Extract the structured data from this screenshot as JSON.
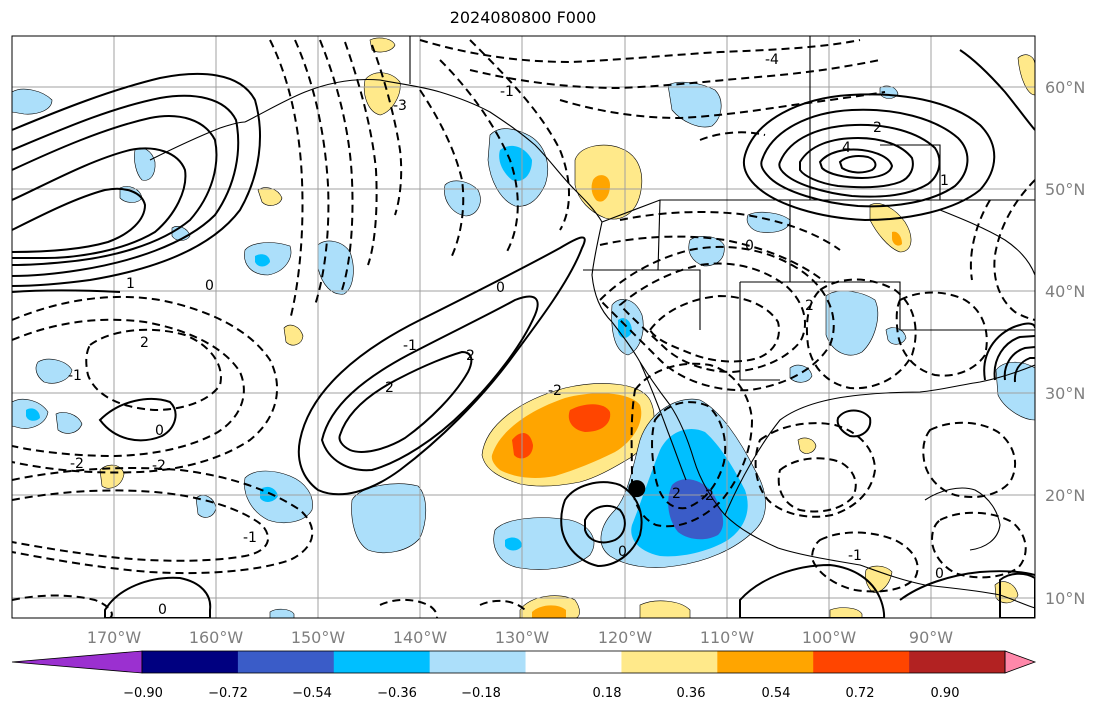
{
  "title": "2024080800 F000",
  "map": {
    "lat_labels": [
      "60°N",
      "50°N",
      "40°N",
      "30°N",
      "20°N",
      "10°N"
    ],
    "lon_labels": [
      "170°W",
      "160°W",
      "150°W",
      "140°W",
      "130°W",
      "120°W",
      "110°W",
      "100°W",
      "90°W"
    ],
    "grid_color": "#a0a0a0",
    "marker": {
      "lon": -118.8,
      "lat": 20.7
    }
  },
  "colorbar": {
    "tick_labels": [
      "−0.90",
      "−0.72",
      "−0.54",
      "−0.36",
      "−0.18",
      "0.18",
      "0.36",
      "0.54",
      "0.72",
      "0.90"
    ],
    "colors": [
      "#9b30d0",
      "#000080",
      "#3a5cc8",
      "#00bfff",
      "#acdffa",
      "#ffffff",
      "#ffe98a",
      "#ffa500",
      "#ff4500",
      "#b22222",
      "#ff88aa"
    ]
  },
  "contour_labels": [
    "0",
    "-1",
    "2",
    "-2",
    "1",
    "2",
    "-2",
    "0",
    "-1",
    "-2",
    "0",
    "2",
    "-1",
    "0",
    "-3",
    "-4",
    "2",
    "1",
    "0",
    "4",
    "-1",
    "2",
    "-2",
    "0",
    "-1",
    "0",
    "2"
  ]
}
